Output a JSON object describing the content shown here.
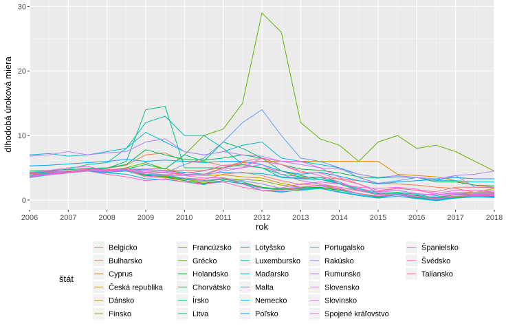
{
  "chart_data": {
    "type": "line",
    "title": "",
    "xlabel": "rok",
    "ylabel": "dlhodobá úroková miera",
    "xlim": [
      2006,
      2018
    ],
    "ylim": [
      -1.5,
      31
    ],
    "x_ticks": [
      2006,
      2007,
      2008,
      2009,
      2010,
      2011,
      2012,
      2013,
      2014,
      2015,
      2016,
      2017,
      2018
    ],
    "y_ticks": [
      0,
      10,
      20,
      30
    ],
    "grid": true,
    "legend_title": "štát",
    "legend_position": "bottom",
    "x": [
      2006,
      2006.5,
      2007,
      2007.5,
      2008,
      2008.5,
      2009,
      2009.5,
      2010,
      2010.5,
      2011,
      2011.5,
      2012,
      2012.5,
      2013,
      2013.5,
      2014,
      2014.5,
      2015,
      2015.5,
      2016,
      2016.5,
      2017,
      2017.5,
      2018
    ],
    "series": [
      {
        "name": "Belgicko",
        "color": "#F8766D",
        "values": [
          3.6,
          4.0,
          4.2,
          4.5,
          4.4,
          4.6,
          4.0,
          3.7,
          3.4,
          3.2,
          4.0,
          4.3,
          3.8,
          3.0,
          2.4,
          2.5,
          2.0,
          1.4,
          0.9,
          1.0,
          0.7,
          0.3,
          0.8,
          0.7,
          0.9
        ]
      },
      {
        "name": "Bulharsko",
        "color": "#EF7F49",
        "values": [
          4.0,
          4.2,
          4.5,
          4.8,
          4.9,
          5.4,
          7.0,
          7.3,
          6.0,
          6.0,
          5.3,
          5.3,
          5.0,
          4.5,
          3.5,
          3.5,
          3.3,
          3.0,
          2.6,
          2.5,
          2.3,
          2.0,
          1.8,
          1.2,
          1.1
        ]
      },
      {
        "name": "Cyprus",
        "color": "#E38900",
        "values": [
          4.1,
          4.3,
          4.5,
          4.6,
          4.5,
          4.7,
          4.7,
          4.6,
          4.6,
          4.6,
          5.0,
          5.8,
          6.0,
          6.0,
          6.0,
          6.0,
          6.0,
          6.0,
          6.0,
          4.0,
          3.8,
          3.6,
          3.0,
          2.3,
          2.0
        ]
      },
      {
        "name": "Česká republika",
        "color": "#D49200",
        "values": [
          3.8,
          4.0,
          4.3,
          4.6,
          4.6,
          4.8,
          4.8,
          4.9,
          4.0,
          3.8,
          3.9,
          3.6,
          3.4,
          2.6,
          2.0,
          2.3,
          1.7,
          1.0,
          0.6,
          0.8,
          0.5,
          0.4,
          0.9,
          1.2,
          1.8
        ]
      },
      {
        "name": "Dánsko",
        "color": "#C09B00",
        "values": [
          3.7,
          4.0,
          4.3,
          4.6,
          4.4,
          4.6,
          3.6,
          3.5,
          3.0,
          2.6,
          3.0,
          2.5,
          1.5,
          1.2,
          1.6,
          1.9,
          1.5,
          1.0,
          0.5,
          0.9,
          0.5,
          0.0,
          0.4,
          0.5,
          0.6
        ]
      },
      {
        "name": "Fínsko",
        "color": "#A9A400",
        "values": [
          3.6,
          4.0,
          4.3,
          4.6,
          4.5,
          4.6,
          4.0,
          3.7,
          3.2,
          2.8,
          3.3,
          2.8,
          2.0,
          1.5,
          1.8,
          2.0,
          1.5,
          1.0,
          0.6,
          0.9,
          0.5,
          0.1,
          0.5,
          0.6,
          0.7
        ]
      },
      {
        "name": "Francúzsko",
        "color": "#8CAB00",
        "values": [
          3.6,
          4.0,
          4.3,
          4.6,
          4.4,
          4.6,
          3.8,
          3.6,
          3.2,
          2.8,
          3.3,
          3.2,
          3.0,
          2.3,
          2.0,
          2.3,
          2.0,
          1.5,
          0.8,
          1.0,
          0.7,
          0.3,
          0.9,
          0.8,
          0.8
        ]
      },
      {
        "name": "Grécko",
        "color": "#64B200",
        "values": [
          4.1,
          4.4,
          4.5,
          4.7,
          4.6,
          5.0,
          5.8,
          4.8,
          7.0,
          10.0,
          11.0,
          15.0,
          29.0,
          26.0,
          12.0,
          9.5,
          8.5,
          6.0,
          9.0,
          10.0,
          8.0,
          8.5,
          7.5,
          6.0,
          4.5
        ]
      },
      {
        "name": "Holandsko",
        "color": "#00B81F",
        "values": [
          3.6,
          4.0,
          4.3,
          4.6,
          4.4,
          4.5,
          3.8,
          3.6,
          3.0,
          2.6,
          3.0,
          2.6,
          2.0,
          1.7,
          1.9,
          2.0,
          1.5,
          1.0,
          0.5,
          0.8,
          0.4,
          0.0,
          0.6,
          0.6,
          0.6
        ]
      },
      {
        "name": "Chorvátsko",
        "color": "#00BB4E",
        "values": [
          4.5,
          4.6,
          4.7,
          4.9,
          5.0,
          5.5,
          7.8,
          7.0,
          6.3,
          6.2,
          6.5,
          7.0,
          6.5,
          5.5,
          4.8,
          4.6,
          4.2,
          3.6,
          3.4,
          3.6,
          3.5,
          2.8,
          2.8,
          2.3,
          2.2
        ]
      },
      {
        "name": "Írsko",
        "color": "#00BE6F",
        "values": [
          3.7,
          4.0,
          4.4,
          4.8,
          4.5,
          4.8,
          5.5,
          4.8,
          7.0,
          6.0,
          9.0,
          8.0,
          6.5,
          4.5,
          3.8,
          3.2,
          2.5,
          1.5,
          0.9,
          1.1,
          0.7,
          0.4,
          0.9,
          0.7,
          0.8
        ]
      },
      {
        "name": "Litva",
        "color": "#00C08B",
        "values": [
          3.8,
          4.2,
          4.5,
          4.8,
          4.9,
          6.0,
          14.0,
          14.5,
          5.0,
          5.0,
          5.0,
          5.5,
          5.0,
          4.0,
          3.6,
          3.5,
          2.8,
          1.5,
          1.0,
          1.0,
          0.6,
          0.2,
          0.3,
          0.5,
          0.4
        ]
      },
      {
        "name": "Lotyšsko",
        "color": "#00C1A5",
        "values": [
          3.8,
          4.5,
          4.8,
          5.5,
          5.8,
          8.0,
          12.0,
          13.0,
          10.0,
          10.0,
          8.0,
          5.5,
          5.0,
          3.5,
          3.3,
          3.2,
          2.8,
          1.7,
          1.0,
          1.2,
          0.9,
          0.3,
          0.6,
          0.7,
          0.7
        ]
      },
      {
        "name": "Luxembursko",
        "color": "#00BFBD",
        "values": [
          3.5,
          3.9,
          4.2,
          4.5,
          4.3,
          4.5,
          3.9,
          3.8,
          3.3,
          3.0,
          3.2,
          2.8,
          1.8,
          1.6,
          1.7,
          1.8,
          1.3,
          0.8,
          0.4,
          0.8,
          0.3,
          0.0,
          0.4,
          0.5,
          0.5
        ]
      },
      {
        "name": "Maďarsko",
        "color": "#00BBD3",
        "values": [
          7.0,
          7.2,
          6.8,
          7.0,
          7.5,
          8.0,
          10.5,
          9.0,
          7.5,
          7.0,
          7.5,
          8.5,
          9.0,
          6.5,
          6.0,
          5.5,
          5.0,
          4.0,
          3.5,
          3.6,
          3.5,
          3.0,
          3.0,
          2.8,
          2.8
        ]
      },
      {
        "name": "Malta",
        "color": "#00B6E6",
        "values": [
          4.2,
          4.4,
          4.5,
          4.7,
          4.6,
          4.8,
          4.7,
          4.5,
          4.3,
          4.0,
          4.3,
          4.2,
          4.1,
          3.6,
          3.4,
          3.2,
          2.6,
          1.8,
          1.2,
          1.5,
          1.0,
          0.7,
          1.2,
          1.2,
          1.2
        ]
      },
      {
        "name": "Nemecko",
        "color": "#00AEF7",
        "values": [
          3.5,
          3.9,
          4.2,
          4.5,
          4.2,
          4.0,
          3.3,
          3.2,
          2.8,
          2.4,
          3.0,
          2.5,
          1.5,
          1.3,
          1.5,
          1.8,
          1.2,
          0.7,
          0.3,
          0.6,
          0.2,
          -0.1,
          0.3,
          0.5,
          0.5
        ]
      },
      {
        "name": "Poľsko",
        "color": "#00A5FF",
        "values": [
          5.3,
          5.4,
          5.6,
          5.8,
          6.0,
          6.3,
          6.0,
          6.2,
          6.0,
          5.8,
          6.0,
          6.0,
          5.5,
          4.5,
          4.0,
          4.3,
          3.7,
          3.0,
          2.5,
          2.8,
          3.0,
          3.2,
          3.5,
          3.3,
          3.3
        ]
      },
      {
        "name": "Portugalsko",
        "color": "#619CFF",
        "values": [
          3.8,
          4.1,
          4.5,
          4.8,
          4.5,
          4.8,
          4.3,
          4.2,
          5.5,
          6.5,
          9.0,
          12.0,
          14.0,
          10.0,
          6.5,
          6.0,
          5.0,
          3.5,
          2.6,
          3.0,
          3.5,
          3.0,
          3.8,
          2.0,
          1.9
        ]
      },
      {
        "name": "Rakúsko",
        "color": "#9590FF",
        "values": [
          3.7,
          4.0,
          4.3,
          4.6,
          4.4,
          4.6,
          4.2,
          3.9,
          3.4,
          3.0,
          3.4,
          3.0,
          2.5,
          1.8,
          2.0,
          2.2,
          1.6,
          1.0,
          0.6,
          0.9,
          0.5,
          0.1,
          0.6,
          0.6,
          0.7
        ]
      },
      {
        "name": "Rumunsko",
        "color": "#B983FF",
        "values": [
          6.8,
          7.0,
          7.5,
          7.0,
          7.3,
          7.5,
          9.0,
          9.5,
          7.5,
          7.0,
          7.5,
          7.0,
          6.8,
          6.0,
          5.5,
          5.0,
          4.8,
          4.0,
          3.5,
          3.8,
          3.5,
          3.3,
          3.8,
          4.0,
          4.5
        ]
      },
      {
        "name": "Slovensko",
        "color": "#D277FF",
        "values": [
          4.3,
          4.5,
          4.5,
          4.8,
          4.7,
          4.8,
          4.8,
          4.5,
          4.0,
          3.8,
          4.5,
          5.0,
          5.5,
          4.0,
          3.0,
          2.5,
          2.0,
          1.5,
          0.9,
          1.0,
          0.6,
          0.5,
          0.9,
          1.0,
          1.0
        ]
      },
      {
        "name": "Slovinsko",
        "color": "#E56EF5",
        "values": [
          3.8,
          4.0,
          4.5,
          4.7,
          4.6,
          4.8,
          4.5,
          4.3,
          3.8,
          4.0,
          4.8,
          5.0,
          6.5,
          6.0,
          6.0,
          5.0,
          3.5,
          2.5,
          1.2,
          1.5,
          1.0,
          0.8,
          1.0,
          0.9,
          0.9
        ]
      },
      {
        "name": "Spojené kráľovstvo",
        "color": "#F365E6",
        "values": [
          4.3,
          4.6,
          5.0,
          5.2,
          4.6,
          4.7,
          3.6,
          3.8,
          3.8,
          3.4,
          3.5,
          2.5,
          1.8,
          1.9,
          2.5,
          2.8,
          2.5,
          2.0,
          1.8,
          2.0,
          1.7,
          0.8,
          1.2,
          1.2,
          1.4
        ]
      },
      {
        "name": "Španielsko",
        "color": "#FC61D5",
        "values": [
          3.7,
          4.0,
          4.3,
          4.7,
          4.5,
          4.7,
          4.0,
          3.9,
          4.2,
          4.5,
          5.4,
          5.5,
          6.0,
          5.5,
          4.5,
          3.8,
          2.8,
          1.7,
          1.3,
          1.8,
          1.5,
          1.0,
          1.5,
          1.5,
          1.4
        ]
      },
      {
        "name": "Švédsko",
        "color": "#FF62BE",
        "values": [
          3.6,
          3.9,
          4.2,
          4.5,
          4.0,
          3.6,
          3.0,
          3.3,
          2.8,
          2.5,
          2.8,
          2.0,
          1.5,
          1.5,
          2.0,
          2.3,
          1.8,
          1.0,
          0.6,
          0.8,
          0.5,
          0.2,
          0.6,
          0.7,
          0.7
        ]
      },
      {
        "name": "Taliansko",
        "color": "#FF6C91",
        "values": [
          4.0,
          4.3,
          4.5,
          4.8,
          4.7,
          4.9,
          4.3,
          4.2,
          4.0,
          4.0,
          5.0,
          6.0,
          6.5,
          5.5,
          4.3,
          4.2,
          3.2,
          2.5,
          1.5,
          1.8,
          1.5,
          1.3,
          2.0,
          2.0,
          2.0
        ]
      }
    ]
  }
}
